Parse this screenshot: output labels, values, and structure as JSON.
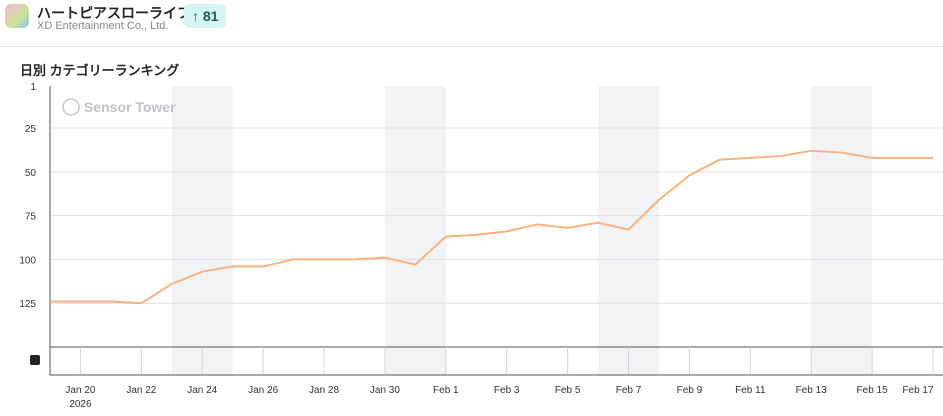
{
  "app": {
    "name": "ハートピアスローライフ",
    "publisher": "XD Entertainment Co., Ltd.",
    "rank_change": "81",
    "rank_change_icon": "arrow-up-icon"
  },
  "chart_title": "日別 カテゴリーランキング",
  "watermark": "Sensor Tower",
  "chart_data": {
    "type": "line",
    "title": "日別 カテゴリーランキング",
    "y_inverted": true,
    "ylim": [
      1,
      150
    ],
    "y_ticks": [
      "1",
      "25",
      "50",
      "75",
      "100",
      "125"
    ],
    "x_ticks": [
      "Jan 20",
      "Jan 22",
      "Jan 24",
      "Jan 26",
      "Jan 28",
      "Jan 30",
      "Feb 1",
      "Feb 3",
      "Feb 5",
      "Feb 7",
      "Feb 9",
      "Feb 11",
      "Feb 13",
      "Feb 15",
      "Feb 17"
    ],
    "year_label": "2026",
    "grid": true,
    "line_color": "#f9b27f",
    "shade_color": "#f1f3f5",
    "shaded_centers": [
      "Jan 24",
      "Jan 31",
      "Feb 7",
      "Feb 14"
    ],
    "x": [
      "Jan 19",
      "Jan 20",
      "Jan 21",
      "Jan 22",
      "Jan 23",
      "Jan 24",
      "Jan 25",
      "Jan 26",
      "Jan 27",
      "Jan 28",
      "Jan 29",
      "Jan 30",
      "Jan 31",
      "Feb 1",
      "Feb 2",
      "Feb 3",
      "Feb 4",
      "Feb 5",
      "Feb 6",
      "Feb 7",
      "Feb 8",
      "Feb 9",
      "Feb 10",
      "Feb 11",
      "Feb 12",
      "Feb 13",
      "Feb 14",
      "Feb 15",
      "Feb 16",
      "Feb 17"
    ],
    "values": [
      124,
      124,
      124,
      125,
      114,
      107,
      104,
      104,
      100,
      100,
      100,
      99,
      103,
      87,
      86,
      84,
      80,
      82,
      79,
      83,
      66,
      52,
      43,
      42,
      41,
      38,
      39,
      42,
      42,
      42
    ]
  }
}
